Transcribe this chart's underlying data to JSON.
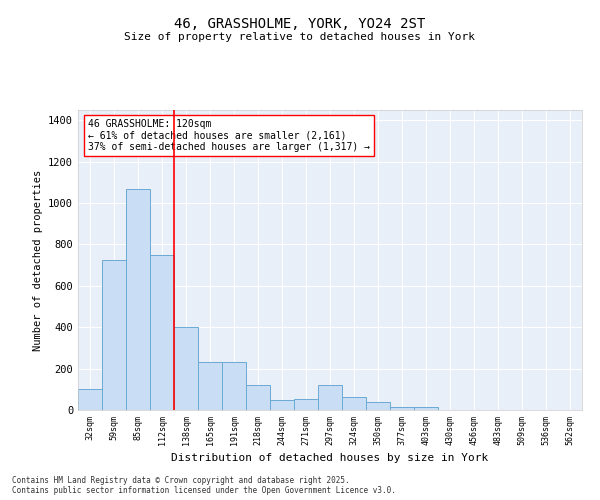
{
  "title1": "46, GRASSHOLME, YORK, YO24 2ST",
  "title2": "Size of property relative to detached houses in York",
  "xlabel": "Distribution of detached houses by size in York",
  "ylabel": "Number of detached properties",
  "bar_color": "#c9ddf5",
  "bar_edge_color": "#6aaad4",
  "background_color": "#e8eff9",
  "grid_color": "#ffffff",
  "categories": [
    "32sqm",
    "59sqm",
    "85sqm",
    "112sqm",
    "138sqm",
    "165sqm",
    "191sqm",
    "218sqm",
    "244sqm",
    "271sqm",
    "297sqm",
    "324sqm",
    "350sqm",
    "377sqm",
    "403sqm",
    "430sqm",
    "456sqm",
    "483sqm",
    "509sqm",
    "536sqm",
    "562sqm"
  ],
  "values": [
    100,
    725,
    1070,
    750,
    400,
    230,
    230,
    120,
    50,
    55,
    120,
    65,
    40,
    15,
    15,
    0,
    0,
    0,
    0,
    0,
    0
  ],
  "ylim": [
    0,
    1450
  ],
  "yticks": [
    0,
    200,
    400,
    600,
    800,
    1000,
    1200,
    1400
  ],
  "property_line_x": 3.5,
  "annotation_text": "46 GRASSHOLME: 120sqm\n← 61% of detached houses are smaller (2,161)\n37% of semi-detached houses are larger (1,317) →",
  "footnote1": "Contains HM Land Registry data © Crown copyright and database right 2025.",
  "footnote2": "Contains public sector information licensed under the Open Government Licence v3.0."
}
